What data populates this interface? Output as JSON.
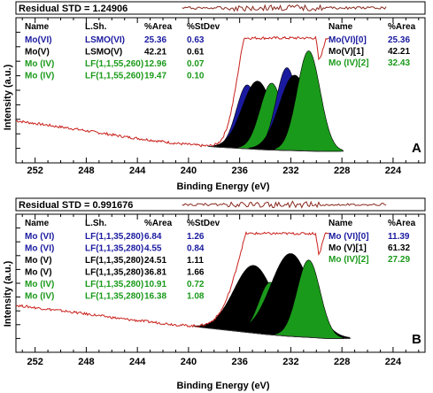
{
  "chart_data": [
    {
      "type": "line",
      "panel_letter": "A",
      "residual_label": "Residual STD = 1.24906",
      "xlabel": "Binding Energy (eV)",
      "ylabel": "Intensity (a.u.)",
      "xlim": [
        253.5,
        221.5
      ],
      "x_ticks": [
        "252",
        "248",
        "244",
        "240",
        "236",
        "232",
        "228",
        "224"
      ],
      "x_tick_values": [
        252,
        248,
        244,
        240,
        236,
        232,
        228,
        224
      ],
      "table_headers": [
        "Name",
        "L.Sh.",
        "%Area",
        "%StDev"
      ],
      "table_rows": [
        {
          "name": "Mo(VI)",
          "lsh": "LSMO(VI)",
          "area": "25.36",
          "stdev": "0.63",
          "color": "#1a1aa0"
        },
        {
          "name": "Mo(V)",
          "lsh": "LSMO(V)",
          "area": "42.21",
          "stdev": "0.61",
          "color": "#000000"
        },
        {
          "name": "Mo (IV)",
          "lsh": "LF(1,1,55,260)",
          "area": "12.96",
          "stdev": "0.07",
          "color": "#1a9a1a"
        },
        {
          "name": "Mo (IV)",
          "lsh": "LF(1,1,55,260)",
          "area": "19.47",
          "stdev": "0.10",
          "color": "#1a9a1a"
        }
      ],
      "legend_headers": [
        "Name",
        "%Area"
      ],
      "legend_rows": [
        {
          "name": "Mo(VI)[0]",
          "area": "25.36",
          "color": "#1a1aa0"
        },
        {
          "name": "Mo(V)[1]",
          "area": "42.21",
          "color": "#000000"
        },
        {
          "name": "Mo (IV)[2]",
          "area": "32.43",
          "color": "#1a9a1a"
        }
      ],
      "background": [
        [
          253.5,
          0.29
        ],
        [
          249,
          0.235
        ],
        [
          245,
          0.18
        ],
        [
          241,
          0.135
        ],
        [
          238,
          0.11
        ],
        [
          236,
          0.1
        ],
        [
          234,
          0.09
        ],
        [
          232,
          0.085
        ],
        [
          230,
          0.08
        ],
        [
          229.3,
          0.08
        ]
      ],
      "envelope_max": 0.86,
      "peaks": [
        {
          "center": 235.4,
          "height": 0.44,
          "fwhm": 0.85,
          "fill": "#1a1aa0"
        },
        {
          "center": 234.6,
          "height": 0.47,
          "fwhm": 1.2,
          "fill": "#000000"
        },
        {
          "center": 233.5,
          "height": 0.46,
          "fwhm": 0.9,
          "fill": "#1a9a1a"
        },
        {
          "center": 232.3,
          "height": 0.57,
          "fwhm": 0.85,
          "fill": "#1a1aa0"
        },
        {
          "center": 231.7,
          "height": 0.52,
          "fwhm": 1.2,
          "fill": "#000000"
        },
        {
          "center": 230.6,
          "height": 0.69,
          "fwhm": 0.9,
          "fill": "#1a9a1a"
        }
      ]
    },
    {
      "type": "line",
      "panel_letter": "B",
      "residual_label": "Residual STD = 0.991676",
      "xlabel": "Binding Energy (eV)",
      "ylabel": "Intensity (a.u.)",
      "xlim": [
        253.5,
        221.5
      ],
      "x_ticks": [
        "252",
        "248",
        "244",
        "240",
        "236",
        "232",
        "228",
        "224"
      ],
      "x_tick_values": [
        252,
        248,
        244,
        240,
        236,
        232,
        228,
        224
      ],
      "table_headers": [
        "Name",
        "L.Sh.",
        "%Area",
        "%StDev"
      ],
      "table_rows": [
        {
          "name": "Mo (VI)",
          "lsh": "LF(1,1,35,280)",
          "area": "6.84",
          "stdev": "1.26",
          "color": "#1a1aa0"
        },
        {
          "name": "Mo (VI)",
          "lsh": "LF(1,1,35,280)",
          "area": "4.55",
          "stdev": "0.84",
          "color": "#1a1aa0"
        },
        {
          "name": "Mo (V)",
          "lsh": "LF(1,1,35,280)",
          "area": "24.51",
          "stdev": "1.11",
          "color": "#000000"
        },
        {
          "name": "Mo (V)",
          "lsh": "LF(1,1,35,280)",
          "area": "36.81",
          "stdev": "1.66",
          "color": "#000000"
        },
        {
          "name": "Mo (IV)",
          "lsh": "LF(1,1,35,280)",
          "area": "10.91",
          "stdev": "0.72",
          "color": "#1a9a1a"
        },
        {
          "name": "Mo (IV)",
          "lsh": "LF(1,1,35,280)",
          "area": "16.38",
          "stdev": "1.08",
          "color": "#1a9a1a"
        }
      ],
      "legend_headers": [
        "Name",
        "%Area"
      ],
      "legend_rows": [
        {
          "name": "Mo (VI)[0]",
          "area": "11.39",
          "color": "#1a1aa0"
        },
        {
          "name": "Mo (V)[1]",
          "area": "61.32",
          "color": "#000000"
        },
        {
          "name": "Mo (IV)[2]",
          "area": "27.29",
          "color": "#1a9a1a"
        }
      ],
      "background": [
        [
          253.5,
          0.34
        ],
        [
          249,
          0.29
        ],
        [
          245,
          0.24
        ],
        [
          241,
          0.2
        ],
        [
          238,
          0.17
        ],
        [
          236,
          0.15
        ],
        [
          234,
          0.13
        ],
        [
          232,
          0.115
        ],
        [
          230,
          0.105
        ],
        [
          229.3,
          0.1
        ]
      ],
      "envelope_max": 0.86,
      "peaks": [
        {
          "center": 235.3,
          "height": 0.18,
          "fwhm": 0.9,
          "fill": "#1a1aa0"
        },
        {
          "center": 234.9,
          "height": 0.49,
          "fwhm": 1.55,
          "fill": "#000000"
        },
        {
          "center": 233.6,
          "height": 0.38,
          "fwhm": 0.9,
          "fill": "#1a9a1a"
        },
        {
          "center": 232.4,
          "height": 0.22,
          "fwhm": 0.9,
          "fill": "#1a1aa0"
        },
        {
          "center": 232.0,
          "height": 0.6,
          "fwhm": 1.55,
          "fill": "#000000"
        },
        {
          "center": 230.6,
          "height": 0.56,
          "fwhm": 0.9,
          "fill": "#1a9a1a"
        }
      ]
    }
  ]
}
